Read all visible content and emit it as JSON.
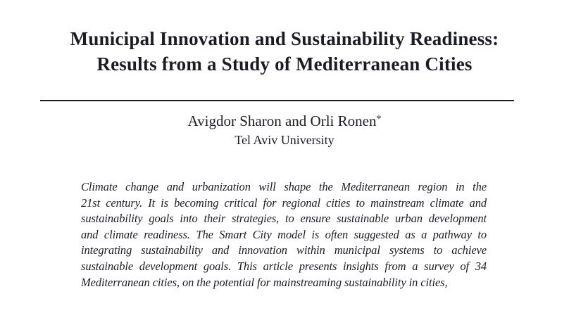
{
  "colors": {
    "ink": "#1c1c26",
    "background": "#ffffff"
  },
  "title": {
    "line1": "Municipal Innovation and Sustainability Readiness:",
    "line2": "Results from a Study of Mediterranean Cities"
  },
  "authors": {
    "names": "Avigdor Sharon and Orli Ronen",
    "footnote_marker": "*",
    "affiliation": "Tel Aviv University"
  },
  "abstract": {
    "lines": [
      "Climate change and urbanization will shape the Mediterranean region in the",
      "21st century. It is becoming critical for regional cities to mainstream climate and",
      "sustainability goals into their strategies, to ensure sustainable urban development",
      "and climate readiness. The Smart City model is often suggested as a pathway to",
      "integrating sustainability and innovation within municipal systems to achieve",
      "sustainable development goals. This article presents insights from a survey of 34",
      "Mediterranean cities, on the potential for mainstreaming sustainability in cities,"
    ]
  }
}
